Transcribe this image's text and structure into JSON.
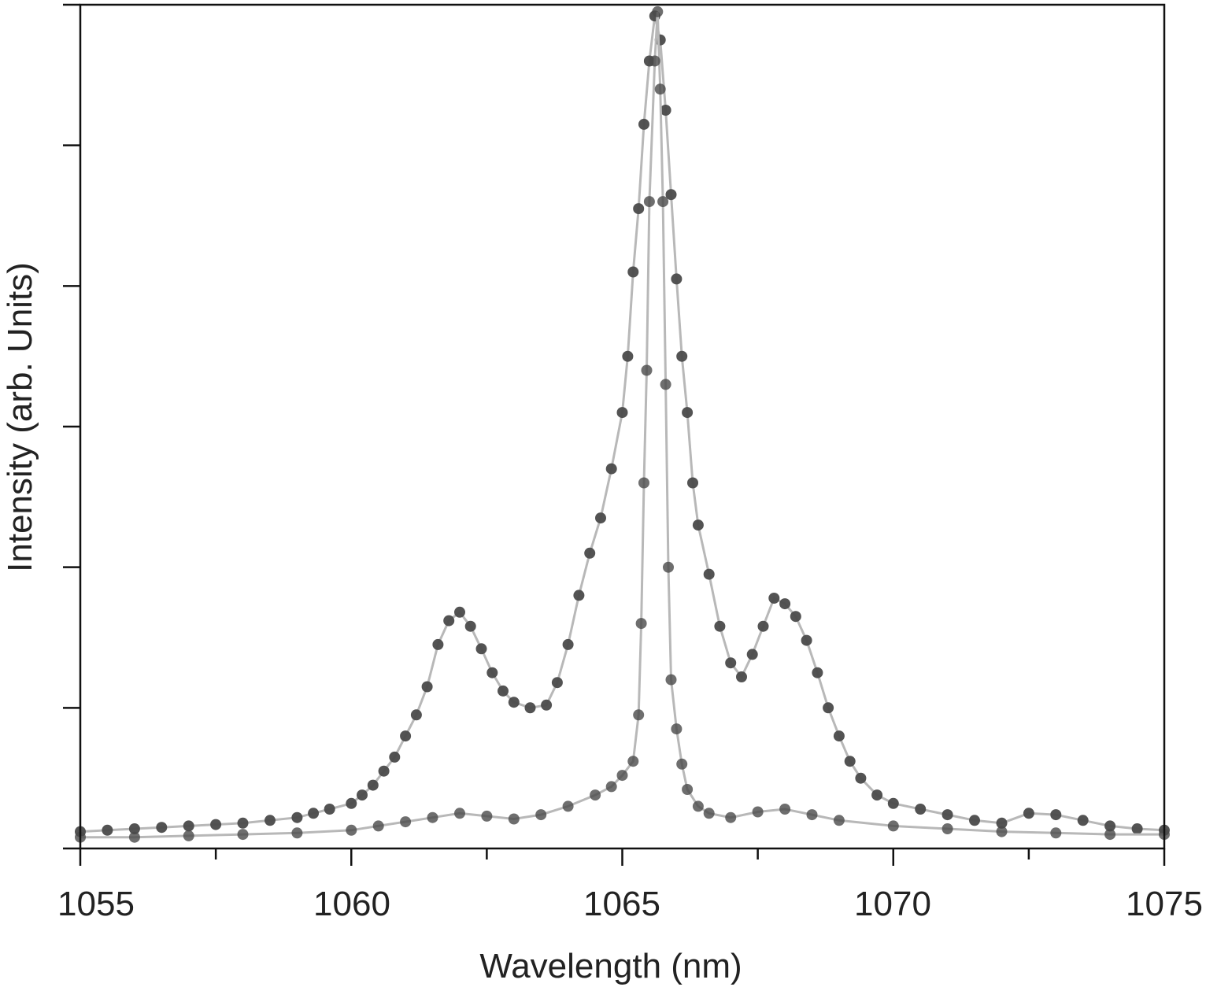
{
  "chart_data": {
    "type": "scatter",
    "xlabel": "Wavelength (nm)",
    "ylabel": "Intensity (arb. Units)",
    "xlim": [
      1055,
      1075
    ],
    "ylim": [
      0,
      6
    ],
    "x_ticks": [
      "1055",
      "1060",
      "1065",
      "1070",
      "1075"
    ],
    "y_tick_values": [
      0,
      1,
      2,
      3,
      4,
      5,
      6
    ],
    "y_tick_labels_shown": false,
    "grid": false,
    "legend": "none",
    "marker_color": "#4a4a4a",
    "line_color": "#b8b8b8",
    "series": [
      {
        "points": [
          [
            1055.0,
            0.12
          ],
          [
            1055.5,
            0.13
          ],
          [
            1056.0,
            0.14
          ],
          [
            1056.5,
            0.15
          ],
          [
            1057.0,
            0.16
          ],
          [
            1057.5,
            0.17
          ],
          [
            1058.0,
            0.18
          ],
          [
            1058.5,
            0.2
          ],
          [
            1059.0,
            0.22
          ],
          [
            1059.3,
            0.25
          ],
          [
            1059.6,
            0.28
          ],
          [
            1060.0,
            0.32
          ],
          [
            1060.2,
            0.38
          ],
          [
            1060.4,
            0.45
          ],
          [
            1060.6,
            0.55
          ],
          [
            1060.8,
            0.65
          ],
          [
            1061.0,
            0.8
          ],
          [
            1061.2,
            0.95
          ],
          [
            1061.4,
            1.15
          ],
          [
            1061.6,
            1.45
          ],
          [
            1061.8,
            1.62
          ],
          [
            1062.0,
            1.68
          ],
          [
            1062.2,
            1.58
          ],
          [
            1062.4,
            1.42
          ],
          [
            1062.6,
            1.25
          ],
          [
            1062.8,
            1.12
          ],
          [
            1063.0,
            1.04
          ],
          [
            1063.3,
            1.0
          ],
          [
            1063.6,
            1.02
          ],
          [
            1063.8,
            1.18
          ],
          [
            1064.0,
            1.45
          ],
          [
            1064.2,
            1.8
          ],
          [
            1064.4,
            2.1
          ],
          [
            1064.6,
            2.35
          ],
          [
            1064.8,
            2.7
          ],
          [
            1065.0,
            3.1
          ],
          [
            1065.1,
            3.5
          ],
          [
            1065.2,
            4.1
          ],
          [
            1065.3,
            4.55
          ],
          [
            1065.4,
            5.15
          ],
          [
            1065.5,
            5.6
          ],
          [
            1065.6,
            5.92
          ],
          [
            1065.7,
            5.75
          ],
          [
            1065.8,
            5.25
          ],
          [
            1065.9,
            4.65
          ],
          [
            1066.0,
            4.05
          ],
          [
            1066.1,
            3.5
          ],
          [
            1066.2,
            3.1
          ],
          [
            1066.3,
            2.6
          ],
          [
            1066.4,
            2.3
          ],
          [
            1066.6,
            1.95
          ],
          [
            1066.8,
            1.58
          ],
          [
            1067.0,
            1.32
          ],
          [
            1067.2,
            1.22
          ],
          [
            1067.4,
            1.38
          ],
          [
            1067.6,
            1.58
          ],
          [
            1067.8,
            1.78
          ],
          [
            1068.0,
            1.74
          ],
          [
            1068.2,
            1.65
          ],
          [
            1068.4,
            1.48
          ],
          [
            1068.6,
            1.25
          ],
          [
            1068.8,
            1.0
          ],
          [
            1069.0,
            0.8
          ],
          [
            1069.2,
            0.62
          ],
          [
            1069.4,
            0.5
          ],
          [
            1069.7,
            0.38
          ],
          [
            1070.0,
            0.32
          ],
          [
            1070.5,
            0.28
          ],
          [
            1071.0,
            0.24
          ],
          [
            1071.5,
            0.2
          ],
          [
            1072.0,
            0.18
          ],
          [
            1072.5,
            0.25
          ],
          [
            1073.0,
            0.24
          ],
          [
            1073.5,
            0.2
          ],
          [
            1074.0,
            0.16
          ],
          [
            1074.5,
            0.14
          ],
          [
            1075.0,
            0.13
          ]
        ]
      },
      {
        "points": [
          [
            1055.0,
            0.08
          ],
          [
            1056.0,
            0.08
          ],
          [
            1057.0,
            0.09
          ],
          [
            1058.0,
            0.1
          ],
          [
            1059.0,
            0.11
          ],
          [
            1060.0,
            0.13
          ],
          [
            1060.5,
            0.16
          ],
          [
            1061.0,
            0.19
          ],
          [
            1061.5,
            0.22
          ],
          [
            1062.0,
            0.25
          ],
          [
            1062.5,
            0.23
          ],
          [
            1063.0,
            0.21
          ],
          [
            1063.5,
            0.24
          ],
          [
            1064.0,
            0.3
          ],
          [
            1064.5,
            0.38
          ],
          [
            1064.8,
            0.44
          ],
          [
            1065.0,
            0.52
          ],
          [
            1065.2,
            0.62
          ],
          [
            1065.3,
            0.95
          ],
          [
            1065.35,
            1.6
          ],
          [
            1065.4,
            2.6
          ],
          [
            1065.45,
            3.4
          ],
          [
            1065.5,
            4.6
          ],
          [
            1065.6,
            5.6
          ],
          [
            1065.65,
            5.95
          ],
          [
            1065.7,
            5.4
          ],
          [
            1065.75,
            4.6
          ],
          [
            1065.8,
            3.3
          ],
          [
            1065.85,
            2.0
          ],
          [
            1065.9,
            1.2
          ],
          [
            1066.0,
            0.85
          ],
          [
            1066.1,
            0.6
          ],
          [
            1066.2,
            0.42
          ],
          [
            1066.4,
            0.3
          ],
          [
            1066.6,
            0.25
          ],
          [
            1067.0,
            0.22
          ],
          [
            1067.5,
            0.26
          ],
          [
            1068.0,
            0.28
          ],
          [
            1068.5,
            0.24
          ],
          [
            1069.0,
            0.2
          ],
          [
            1070.0,
            0.16
          ],
          [
            1071.0,
            0.14
          ],
          [
            1072.0,
            0.12
          ],
          [
            1073.0,
            0.11
          ],
          [
            1074.0,
            0.1
          ],
          [
            1075.0,
            0.1
          ]
        ]
      }
    ]
  }
}
